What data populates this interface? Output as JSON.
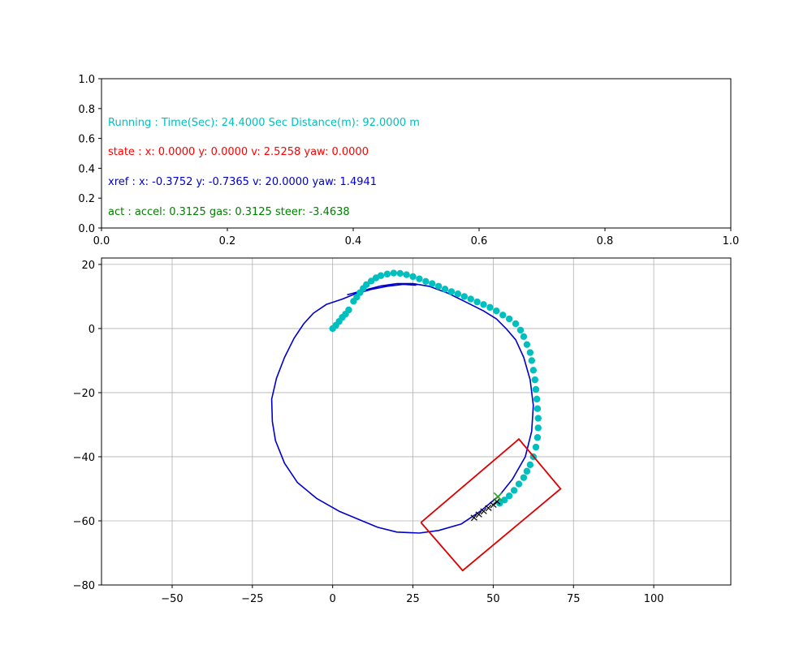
{
  "chart_data": [
    {
      "type": "table",
      "panel": "status",
      "xlim": [
        0,
        1
      ],
      "ylim": [
        0,
        1
      ],
      "x_ticks": [
        "0.0",
        "0.2",
        "0.4",
        "0.6",
        "0.8",
        "1.0"
      ],
      "y_ticks": [
        "0.0",
        "0.2",
        "0.4",
        "0.6",
        "0.8",
        "1.0"
      ],
      "lines": [
        {
          "text": "Running : Time(Sec): 24.4000 Sec Distance(m): 92.0000 m",
          "color": "#00bfbf",
          "x": 0.01,
          "y": 0.7
        },
        {
          "text": "state :  x: 0.0000 y: 0.0000 v: 2.5258 yaw: 0.0000",
          "color": "#ff0000",
          "x": 0.01,
          "y": 0.5
        },
        {
          "text": "xref :  x: -0.3752 y: -0.7365 v: 20.0000 yaw: 1.4941",
          "color": "#0000ff",
          "x": 0.01,
          "y": 0.3
        },
        {
          "text": "act :  accel: 0.3125 gas: 0.3125 steer: -3.4638",
          "color": "#008000",
          "x": 0.01,
          "y": 0.1
        }
      ]
    },
    {
      "type": "line",
      "panel": "trajectory",
      "xlim": [
        -72,
        124
      ],
      "ylim": [
        -80,
        22
      ],
      "grid": true,
      "x_ticks": [
        -50,
        -25,
        0,
        25,
        50,
        75,
        100
      ],
      "x_tick_labels": [
        "−50",
        "−25",
        "0",
        "25",
        "50",
        "75",
        "100"
      ],
      "y_ticks": [
        20,
        0,
        -20,
        -40,
        -60,
        -80
      ],
      "y_tick_labels": [
        "20",
        "0",
        "−20",
        "−40",
        "−60",
        "−80"
      ],
      "series": [
        {
          "name": "reference-path",
          "color": "#0000cc",
          "style": "line",
          "points": [
            [
              26,
              13.5
            ],
            [
              22,
              13.8
            ],
            [
              17,
              13.2
            ],
            [
              12,
              12.2
            ],
            [
              7,
              10.8
            ],
            [
              3,
              9.2
            ],
            [
              -2,
              7.5
            ],
            [
              -6,
              4.8
            ],
            [
              -9,
              1.5
            ],
            [
              -12,
              -3
            ],
            [
              -15,
              -9
            ],
            [
              -17.5,
              -15.5
            ],
            [
              -19,
              -22
            ],
            [
              -18.8,
              -29
            ],
            [
              -17.8,
              -35
            ],
            [
              -15,
              -42
            ],
            [
              -11,
              -48
            ],
            [
              -5,
              -53
            ],
            [
              2,
              -57
            ],
            [
              8,
              -59.5
            ],
            [
              14,
              -62
            ],
            [
              20,
              -63.5
            ],
            [
              27,
              -63.8
            ],
            [
              33,
              -63
            ],
            [
              40,
              -61
            ],
            [
              46,
              -57
            ],
            [
              52,
              -52
            ],
            [
              56,
              -47
            ],
            [
              60,
              -40
            ],
            [
              62,
              -32
            ],
            [
              62.5,
              -24
            ],
            [
              61.5,
              -16
            ],
            [
              59.5,
              -9
            ],
            [
              57,
              -3.5
            ],
            [
              54,
              0
            ],
            [
              51,
              3
            ],
            [
              47,
              5.5
            ],
            [
              42,
              8
            ],
            [
              36,
              11
            ],
            [
              30,
              13.2
            ],
            [
              25,
              14
            ],
            [
              20,
              14
            ],
            [
              15,
              13.3
            ],
            [
              10,
              12
            ],
            [
              4.5,
              10.5
            ]
          ]
        },
        {
          "name": "driven-trajectory",
          "color": "#00bfbf",
          "style": "markers",
          "points": [
            [
              0,
              0
            ],
            [
              1,
              1
            ],
            [
              2,
              2.2
            ],
            [
              3,
              3.5
            ],
            [
              4,
              4.5
            ],
            [
              5,
              5.8
            ],
            [
              6.5,
              8.5
            ],
            [
              7.5,
              9.8
            ],
            [
              8.5,
              11.2
            ],
            [
              9.5,
              12.5
            ],
            [
              10.5,
              13.7
            ],
            [
              12,
              14.8
            ],
            [
              13.5,
              15.8
            ],
            [
              15,
              16.5
            ],
            [
              17,
              17
            ],
            [
              19,
              17.3
            ],
            [
              21,
              17.2
            ],
            [
              23,
              16.8
            ],
            [
              25,
              16.2
            ],
            [
              27,
              15.5
            ],
            [
              29,
              14.7
            ],
            [
              31,
              14
            ],
            [
              33,
              13.2
            ],
            [
              35,
              12.3
            ],
            [
              37,
              11.5
            ],
            [
              39,
              10.8
            ],
            [
              41,
              10
            ],
            [
              43,
              9.2
            ],
            [
              45,
              8.3
            ],
            [
              47,
              7.5
            ],
            [
              49,
              6.6
            ],
            [
              51,
              5.5
            ],
            [
              53,
              4.2
            ],
            [
              55,
              3
            ],
            [
              57,
              1.5
            ],
            [
              58.5,
              -0.5
            ],
            [
              59.5,
              -2.5
            ],
            [
              60.5,
              -5
            ],
            [
              61.5,
              -7.5
            ],
            [
              62,
              -10
            ],
            [
              62.5,
              -13
            ],
            [
              63,
              -16
            ],
            [
              63.3,
              -19
            ],
            [
              63.6,
              -22
            ],
            [
              63.8,
              -25
            ],
            [
              64,
              -28
            ],
            [
              64,
              -31
            ],
            [
              63.8,
              -34
            ],
            [
              63.3,
              -37
            ],
            [
              62.5,
              -40
            ],
            [
              61.5,
              -42.5
            ],
            [
              60.5,
              -44.5
            ],
            [
              59.5,
              -46.5
            ],
            [
              58,
              -48.5
            ],
            [
              56.5,
              -50.5
            ],
            [
              55,
              -52.2
            ],
            [
              53.5,
              -53.5
            ],
            [
              52,
              -54.5
            ]
          ]
        },
        {
          "name": "predicted-horizon",
          "color": "#000000",
          "style": "plus-markers",
          "points": [
            [
              44,
              -59
            ],
            [
              45.5,
              -58
            ],
            [
              47,
              -57
            ],
            [
              48.5,
              -56
            ],
            [
              50,
              -55
            ],
            [
              51.2,
              -54
            ]
          ]
        },
        {
          "name": "target-point",
          "color": "#2ca02c",
          "style": "cross-marker",
          "points": [
            [
              51.5,
              -52.5
            ]
          ]
        },
        {
          "name": "vehicle-outline",
          "color": "#dd0000",
          "style": "polygon",
          "points": [
            [
              27.5,
              -60.5
            ],
            [
              58,
              -34.5
            ],
            [
              71,
              -50
            ],
            [
              40.5,
              -75.5
            ],
            [
              27.5,
              -60.5
            ]
          ]
        }
      ]
    }
  ]
}
